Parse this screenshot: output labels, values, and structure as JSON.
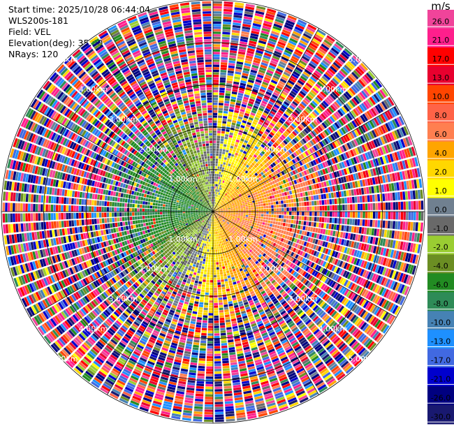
{
  "header": {
    "start_time": "Start time: 2025/10/28 06:44:04",
    "instrument": "WLS200s-181",
    "field": "Field: VEL",
    "elevation": "Elevation(deg): 35.00",
    "nrays": "NRays: 120"
  },
  "colorbar": {
    "unit": "m/s",
    "ticks": [
      "26.0",
      "21.0",
      "17.0",
      "13.0",
      "10.0",
      "8.0",
      "6.0",
      "4.0",
      "2.0",
      "1.0",
      "0.0",
      "-1.0",
      "-2.0",
      "-4.0",
      "-6.0",
      "-8.0",
      "-10.0",
      "-13.0",
      "-17.0",
      "-21.0",
      "-26.0",
      "-30.0"
    ],
    "colors": [
      "#f0449a",
      "#ff1f8c",
      "#ff0000",
      "#e8002e",
      "#ff4500",
      "#ff6347",
      "#ff7f50",
      "#ffa500",
      "#ffd700",
      "#ffff00",
      "#708090",
      "#696969",
      "#9acd32",
      "#6b8e23",
      "#228b22",
      "#2e8b57",
      "#4682b4",
      "#1e90ff",
      "#4169e1",
      "#0000cd",
      "#000080",
      "#191970"
    ]
  },
  "chart_data": {
    "type": "heatmap",
    "projection": "polar-ppi",
    "field": "VEL",
    "units": "m/s",
    "nrays": 120,
    "max_range_km": 5.0,
    "range_rings_km": [
      1,
      2,
      3,
      4,
      5
    ],
    "range_ring_labels": [
      "1.00km",
      "2.00km",
      "3.00km",
      "4.00km",
      "5.00km"
    ],
    "color_scale": {
      "levels": [
        -30,
        -26,
        -21,
        -17,
        -13,
        -10,
        -8,
        -6,
        -4,
        -2,
        -1,
        0,
        1,
        2,
        4,
        6,
        8,
        10,
        13,
        17,
        21,
        26,
        30
      ]
    },
    "velocity_pattern": {
      "near_field_west_mps": -6,
      "near_field_east_mps": 6,
      "near_field_north_mps": 0,
      "near_field_south_mps": 3,
      "far_field": "noise"
    }
  }
}
